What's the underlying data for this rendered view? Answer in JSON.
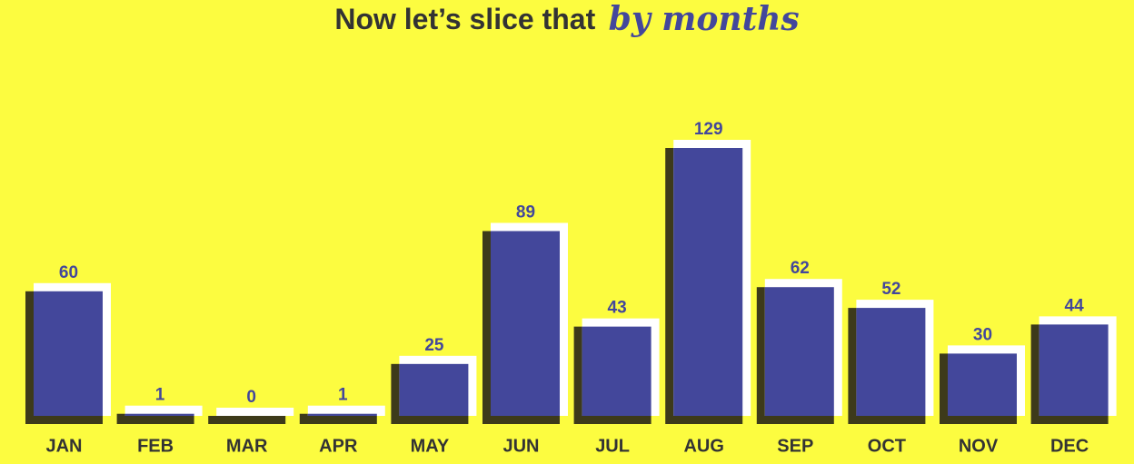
{
  "chart_data": {
    "type": "bar",
    "title_parts": [
      "Now let’s slice that",
      "by months"
    ],
    "categories": [
      "JAN",
      "FEB",
      "MAR",
      "APR",
      "MAY",
      "JUN",
      "JUL",
      "AUG",
      "SEP",
      "OCT",
      "NOV",
      "DEC"
    ],
    "values": [
      60,
      1,
      0,
      1,
      25,
      89,
      43,
      129,
      62,
      52,
      30,
      44
    ],
    "color": "#43479b"
  }
}
